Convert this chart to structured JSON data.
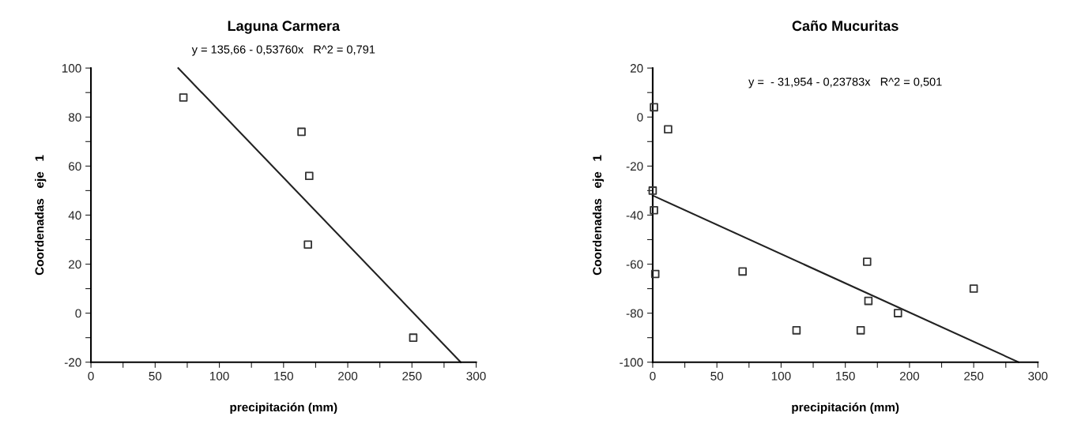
{
  "chart_data": [
    {
      "type": "scatter",
      "title": "Laguna Carmera",
      "xlabel": "precipitación (mm)",
      "ylabel": "Coordenadas   eje   1",
      "annotations": [
        "y = 135,66 - 0,53760x   R^2 = 0,791"
      ],
      "grid": false,
      "xlim": [
        0,
        300
      ],
      "ylim": [
        -20,
        100
      ],
      "xticks": [
        0,
        {
          "value": 25,
          "label": null
        },
        50,
        {
          "value": 75,
          "label": null
        },
        100,
        {
          "value": 125,
          "label": null
        },
        150,
        {
          "value": 175,
          "label": null
        },
        200,
        {
          "value": 225,
          "label": null
        },
        250,
        {
          "value": 275,
          "label": null
        },
        300
      ],
      "yticks": [
        -20,
        {
          "value": -10,
          "label": null
        },
        0,
        {
          "value": 10,
          "label": null
        },
        20,
        {
          "value": 30,
          "label": null
        },
        40,
        {
          "value": 50,
          "label": null
        },
        60,
        {
          "value": 70,
          "label": null
        },
        80,
        {
          "value": 90,
          "label": null
        },
        100
      ],
      "series": [
        {
          "marker": "square",
          "color": "#333333",
          "x": [
            72,
            164,
            170,
            169,
            251
          ],
          "values": [
            88,
            74,
            56,
            28,
            -10
          ]
        },
        {
          "type": "line",
          "color": "#222222",
          "x": [
            68,
            288
          ],
          "values": [
            100,
            -20
          ]
        }
      ]
    },
    {
      "type": "scatter",
      "title": "Caño Mucuritas",
      "xlabel": "precipitación (mm)",
      "ylabel": "Coordenadas   eje   1",
      "annotations": [
        "y =  - 31,954 - 0,23783x   R^2 = 0,501"
      ],
      "grid": false,
      "xlim": [
        0,
        300
      ],
      "ylim": [
        -100,
        20
      ],
      "xticks": [
        0,
        {
          "value": 25,
          "label": null
        },
        50,
        {
          "value": 75,
          "label": null
        },
        100,
        {
          "value": 125,
          "label": null
        },
        150,
        {
          "value": 175,
          "label": null
        },
        200,
        {
          "value": 225,
          "label": null
        },
        250,
        {
          "value": 275,
          "label": null
        },
        300
      ],
      "yticks": [
        -100,
        {
          "value": -90,
          "label": null
        },
        -80,
        {
          "value": -70,
          "label": null
        },
        -60,
        {
          "value": -50,
          "label": null
        },
        -40,
        {
          "value": -30,
          "label": null
        },
        -20,
        {
          "value": -10,
          "label": null
        },
        0,
        {
          "value": 10,
          "label": null
        },
        20
      ],
      "series": [
        {
          "marker": "square",
          "color": "#333333",
          "x": [
            1,
            12,
            0,
            1,
            2,
            70,
            112,
            162,
            167,
            168,
            191,
            250
          ],
          "values": [
            4,
            -5,
            -30,
            -38,
            -64,
            -63,
            -87,
            -87,
            -59,
            -75,
            -80,
            -70
          ]
        },
        {
          "type": "line",
          "color": "#222222",
          "x": [
            0,
            285
          ],
          "values": [
            -32,
            -100
          ]
        }
      ]
    }
  ]
}
